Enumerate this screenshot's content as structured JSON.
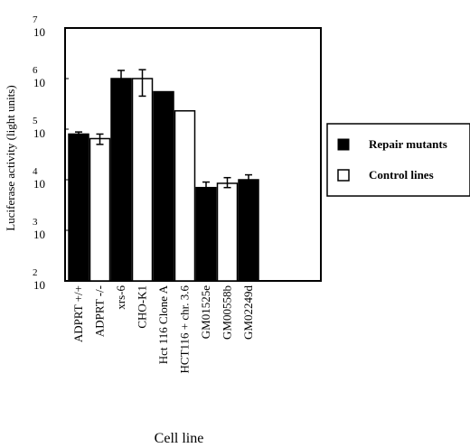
{
  "chart_data": {
    "type": "bar",
    "ylabel": "Luciferase activity (light units)",
    "xlabel": "Cell line",
    "y_scale": "log",
    "ylim_exponents": [
      2,
      7
    ],
    "y_tick_base": "10",
    "y_tick_exponents": [
      "2",
      "3",
      "4",
      "5",
      "6",
      "7"
    ],
    "colors": {
      "repair": "#000000",
      "control": "#ffffff",
      "frame": "#000000"
    },
    "legend": {
      "position": "right",
      "entries": [
        {
          "key": "repair",
          "label": "Repair mutants"
        },
        {
          "key": "control",
          "label": "Control lines"
        }
      ]
    },
    "categories": [
      "ADPRT +/+",
      "ADPRT -/-",
      "xrs-6",
      "CHO-K1",
      "Hct 116 Clone A",
      "HCT116 + chr. 3.6",
      "GM01525e",
      "GM00558b",
      "GM02249d"
    ],
    "bars": [
      {
        "category": "ADPRT +/+",
        "group": "repair",
        "value": 80000,
        "error_high": 88000,
        "error_low": 80000
      },
      {
        "category": "ADPRT -/-",
        "group": "control",
        "value": 65000,
        "error_high": 80000,
        "error_low": 50000
      },
      {
        "category": "xrs-6",
        "group": "repair",
        "value": 1000000,
        "error_high": 1450000,
        "error_low": 1000000
      },
      {
        "category": "CHO-K1",
        "group": "control",
        "value": 1000000,
        "error_high": 1500000,
        "error_low": 450000
      },
      {
        "category": "Hct 116 Clone A",
        "group": "repair",
        "value": 550000,
        "error_high": 550000,
        "error_low": 550000
      },
      {
        "category": "HCT116 + chr. 3.6",
        "group": "control",
        "value": 230000,
        "error_high": 230000,
        "error_low": 230000
      },
      {
        "category": "GM01525e",
        "group": "repair",
        "value": 7000,
        "error_high": 9000,
        "error_low": 7000
      },
      {
        "category": "GM00558b",
        "group": "control",
        "value": 8500,
        "error_high": 11000,
        "error_low": 7000
      },
      {
        "category": "GM02249d",
        "group": "repair",
        "value": 10000,
        "error_high": 12500,
        "error_low": 10000
      }
    ]
  }
}
